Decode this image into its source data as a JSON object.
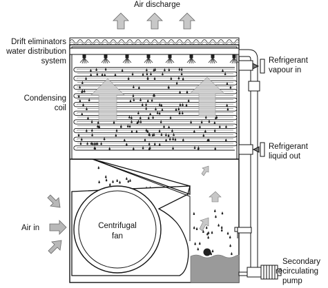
{
  "labels": {
    "air_discharge": "Air discharge",
    "drift_eliminators_1": "Drift eliminators",
    "drift_eliminators_2": "water distribution",
    "drift_eliminators_3": "system",
    "condensing_1": "Condensing",
    "condensing_2": "coil",
    "refrigerant_in_1": "Refrigerant",
    "refrigerant_in_2": "vapour in",
    "refrigerant_out_1": "Refrigerant",
    "refrigerant_out_2": "liquid out",
    "air_in": "Air in",
    "fan_1": "Centrifugal",
    "fan_2": "fan",
    "pump_1": "Secondary",
    "pump_2": "recirculating",
    "pump_3": "pump"
  },
  "colors": {
    "line": "#111111",
    "arrow_fill": "#c8c8c8",
    "arrow_light": "#e6e6e6",
    "water": "#9a9a9a",
    "panel": "#ffffff"
  },
  "icons": [
    "upward-arrow-icon",
    "inward-arrow-icon",
    "spray-nozzle-icon",
    "water-drop-icon",
    "float-ball-icon"
  ]
}
